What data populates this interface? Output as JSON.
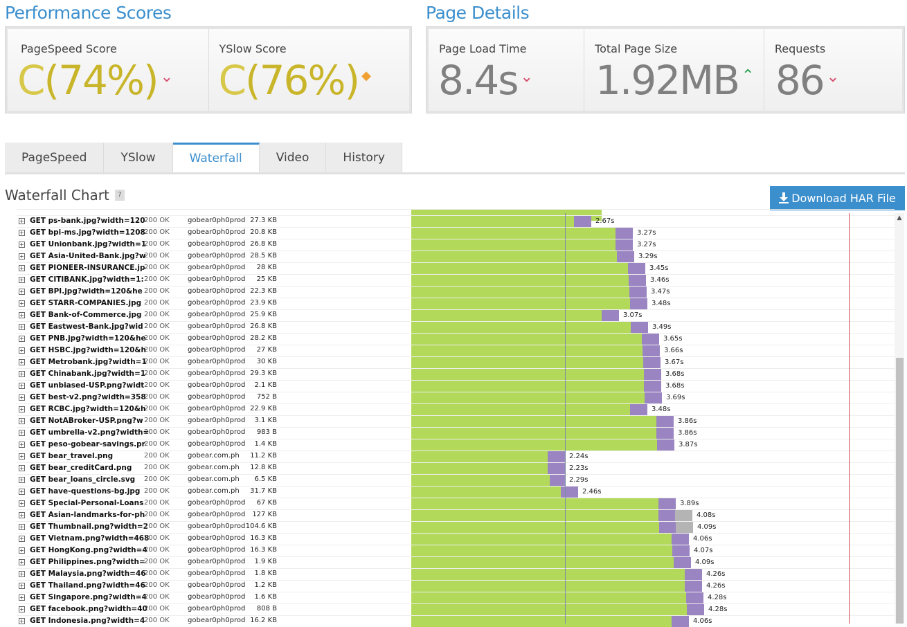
{
  "perf": {
    "title": "Performance Scores",
    "pagespeed": {
      "label": "PageSpeed Score",
      "grade": "C",
      "value": "(74%)",
      "trend": "down"
    },
    "yslow": {
      "label": "YSlow Score",
      "grade": "C",
      "value": "(76%)",
      "trend": "neutral"
    }
  },
  "details": {
    "title": "Page Details",
    "load": {
      "label": "Page Load Time",
      "value": "8.4s",
      "trend": "down"
    },
    "size": {
      "label": "Total Page Size",
      "value": "1.92MB",
      "trend": "up"
    },
    "requests": {
      "label": "Requests",
      "value": "86",
      "trend": "down"
    }
  },
  "tabs": [
    "PageSpeed",
    "YSlow",
    "Waterfall",
    "Video",
    "History"
  ],
  "active_tab": "Waterfall",
  "waterfall": {
    "title": "Waterfall Chart",
    "help": "?",
    "download_label": "Download HAR File",
    "colors": {
      "wait": "#b2d95a",
      "receive": "#9a85c2",
      "blocked": "#b4b4b4",
      "onload": "#6e8aa8",
      "fullload": "#d04040"
    },
    "rows": [
      {
        "url": "GET ps-bank.jpg?width=120",
        "status": "200 OK",
        "domain": "gobear0ph0prod",
        "size": "27.3 KB",
        "start": 0,
        "wait": 2.35,
        "recv": 0.25,
        "blk": 0,
        "time": "2.67s"
      },
      {
        "url": "GET bpi-ms.jpg?width=1208",
        "status": "200 OK",
        "domain": "gobear0ph0prod",
        "size": "20.8 KB",
        "start": 0,
        "wait": 2.95,
        "recv": 0.25,
        "blk": 0,
        "time": "3.27s"
      },
      {
        "url": "GET Unionbank.jpg?width=1",
        "status": "200 OK",
        "domain": "gobear0ph0prod",
        "size": "26.8 KB",
        "start": 0,
        "wait": 2.95,
        "recv": 0.25,
        "blk": 0,
        "time": "3.27s"
      },
      {
        "url": "GET Asia-United-Bank.jpg?w",
        "status": "200 OK",
        "domain": "gobear0ph0prod",
        "size": "28.5 KB",
        "start": 0,
        "wait": 2.97,
        "recv": 0.25,
        "blk": 0,
        "time": "3.29s"
      },
      {
        "url": "GET PIONEER-INSURANCE.jp",
        "status": "200 OK",
        "domain": "gobear0ph0prod",
        "size": "28 KB",
        "start": 0,
        "wait": 3.13,
        "recv": 0.25,
        "blk": 0,
        "time": "3.45s"
      },
      {
        "url": "GET CITIBANK.jpg?width=1:",
        "status": "200 OK",
        "domain": "gobear0ph0prod",
        "size": "25 KB",
        "start": 0,
        "wait": 3.14,
        "recv": 0.25,
        "blk": 0,
        "time": "3.46s"
      },
      {
        "url": "GET BPI.jpg?width=120&he",
        "status": "200 OK",
        "domain": "gobear0ph0prod",
        "size": "22.3 KB",
        "start": 0,
        "wait": 3.15,
        "recv": 0.25,
        "blk": 0,
        "time": "3.47s"
      },
      {
        "url": "GET STARR-COMPANIES.jpg",
        "status": "200 OK",
        "domain": "gobear0ph0prod",
        "size": "23.9 KB",
        "start": 0,
        "wait": 3.16,
        "recv": 0.25,
        "blk": 0,
        "time": "3.48s"
      },
      {
        "url": "GET Bank-of-Commerce.jpg",
        "status": "200 OK",
        "domain": "gobear0ph0prod",
        "size": "25.9 KB",
        "start": 0,
        "wait": 2.75,
        "recv": 0.25,
        "blk": 0,
        "time": "3.07s"
      },
      {
        "url": "GET Eastwest-Bank.jpg?wid",
        "status": "200 OK",
        "domain": "gobear0ph0prod",
        "size": "26.8 KB",
        "start": 0,
        "wait": 3.17,
        "recv": 0.25,
        "blk": 0,
        "time": "3.49s"
      },
      {
        "url": "GET PNB.jpg?width=120&he",
        "status": "200 OK",
        "domain": "gobear0ph0prod",
        "size": "28.2 KB",
        "start": 0,
        "wait": 3.33,
        "recv": 0.25,
        "blk": 0,
        "time": "3.65s"
      },
      {
        "url": "GET HSBC.jpg?width=120&h",
        "status": "200 OK",
        "domain": "gobear0ph0prod",
        "size": "27 KB",
        "start": 0,
        "wait": 3.34,
        "recv": 0.25,
        "blk": 0,
        "time": "3.66s"
      },
      {
        "url": "GET Metrobank.jpg?width=1",
        "status": "200 OK",
        "domain": "gobear0ph0prod",
        "size": "30 KB",
        "start": 0,
        "wait": 3.35,
        "recv": 0.25,
        "blk": 0,
        "time": "3.67s"
      },
      {
        "url": "GET Chinabank.jpg?width=1",
        "status": "200 OK",
        "domain": "gobear0ph0prod",
        "size": "29.3 KB",
        "start": 0,
        "wait": 3.36,
        "recv": 0.25,
        "blk": 0,
        "time": "3.68s"
      },
      {
        "url": "GET unbiased-USP.png?widt",
        "status": "200 OK",
        "domain": "gobear0ph0prod",
        "size": "2.1 KB",
        "start": 0,
        "wait": 3.36,
        "recv": 0.25,
        "blk": 0,
        "time": "3.68s"
      },
      {
        "url": "GET best-v2.png?width=358",
        "status": "200 OK",
        "domain": "gobear0ph0prod",
        "size": "752 B",
        "start": 0,
        "wait": 3.37,
        "recv": 0.25,
        "blk": 0,
        "time": "3.69s"
      },
      {
        "url": "GET RCBC.jpg?width=120&h",
        "status": "200 OK",
        "domain": "gobear0ph0prod",
        "size": "22.9 KB",
        "start": 0,
        "wait": 3.16,
        "recv": 0.25,
        "blk": 0,
        "time": "3.48s"
      },
      {
        "url": "GET NotABroker-USP.png?w",
        "status": "200 OK",
        "domain": "gobear0ph0prod",
        "size": "3.1 KB",
        "start": 0,
        "wait": 3.54,
        "recv": 0.25,
        "blk": 0,
        "time": "3.86s"
      },
      {
        "url": "GET umbrella-v2.png?width=",
        "status": "200 OK",
        "domain": "gobear0ph0prod",
        "size": "983 B",
        "start": 0,
        "wait": 3.54,
        "recv": 0.25,
        "blk": 0,
        "time": "3.86s"
      },
      {
        "url": "GET peso-gobear-savings.pr",
        "status": "200 OK",
        "domain": "gobear0ph0prod",
        "size": "1.4 KB",
        "start": 0,
        "wait": 3.55,
        "recv": 0.25,
        "blk": 0,
        "time": "3.87s"
      },
      {
        "url": "GET bear_travel.png",
        "status": "200 OK",
        "domain": "gobear.com.ph",
        "size": "11.2 KB",
        "start": 0,
        "wait": 1.97,
        "recv": 0.25,
        "blk": 0,
        "time": "2.24s"
      },
      {
        "url": "GET bear_creditCard.png",
        "status": "200 OK",
        "domain": "gobear.com.ph",
        "size": "12.8 KB",
        "start": 0,
        "wait": 1.97,
        "recv": 0.25,
        "blk": 0,
        "time": "2.23s"
      },
      {
        "url": "GET bear_loans_circle.svg",
        "status": "200 OK",
        "domain": "gobear.com.ph",
        "size": "6.5 KB",
        "start": 0,
        "wait": 2.0,
        "recv": 0.22,
        "blk": 0,
        "time": "2.29s"
      },
      {
        "url": "GET have-questions-bg.jpg",
        "status": "200 OK",
        "domain": "gobear.com.ph",
        "size": "31.7 KB",
        "start": 0,
        "wait": 2.16,
        "recv": 0.25,
        "blk": 0,
        "time": "2.46s"
      },
      {
        "url": "GET Special-Personal-Loans",
        "status": "200 OK",
        "domain": "gobear0ph0prod",
        "size": "67 KB",
        "start": 0,
        "wait": 3.57,
        "recv": 0.25,
        "blk": 0,
        "time": "3.89s"
      },
      {
        "url": "GET Asian-landmarks-for-ph",
        "status": "200 OK",
        "domain": "gobear0ph0prod",
        "size": "127 KB",
        "start": 0,
        "wait": 3.57,
        "recv": 0.24,
        "blk": 0.25,
        "time": "4.08s"
      },
      {
        "url": "GET Thumbnail.png?width=2",
        "status": "200 OK",
        "domain": "gobear0ph0prod",
        "size": "104.6 KB",
        "start": 0,
        "wait": 3.58,
        "recv": 0.24,
        "blk": 0.25,
        "time": "4.09s"
      },
      {
        "url": "GET Vietnam.png?width=468",
        "status": "200 OK",
        "domain": "gobear0ph0prod",
        "size": "16.3 KB",
        "start": 0,
        "wait": 3.76,
        "recv": 0.25,
        "blk": 0,
        "time": "4.06s"
      },
      {
        "url": "GET HongKong.png?width=4",
        "status": "200 OK",
        "domain": "gobear0ph0prod",
        "size": "16.3 KB",
        "start": 0,
        "wait": 3.77,
        "recv": 0.25,
        "blk": 0,
        "time": "4.07s"
      },
      {
        "url": "GET Philippines.png?width=",
        "status": "200 OK",
        "domain": "gobear0ph0prod",
        "size": "1.9 KB",
        "start": 0,
        "wait": 3.79,
        "recv": 0.25,
        "blk": 0,
        "time": "4.09s"
      },
      {
        "url": "GET Malaysia.png?width=46",
        "status": "200 OK",
        "domain": "gobear0ph0prod",
        "size": "1.8 KB",
        "start": 0,
        "wait": 3.95,
        "recv": 0.25,
        "blk": 0,
        "time": "4.26s"
      },
      {
        "url": "GET Thailand.png?width=46",
        "status": "200 OK",
        "domain": "gobear0ph0prod",
        "size": "1.2 KB",
        "start": 0,
        "wait": 3.95,
        "recv": 0.25,
        "blk": 0,
        "time": "4.26s"
      },
      {
        "url": "GET Singapore.png?width=4",
        "status": "200 OK",
        "domain": "gobear0ph0prod",
        "size": "1.6 KB",
        "start": 0,
        "wait": 3.97,
        "recv": 0.25,
        "blk": 0,
        "time": "4.28s"
      },
      {
        "url": "GET facebook.png?width=40",
        "status": "200 OK",
        "domain": "gobear0ph0prod",
        "size": "808 B",
        "start": 0,
        "wait": 3.98,
        "recv": 0.25,
        "blk": 0,
        "time": "4.28s"
      },
      {
        "url": "GET Indonesia.png?width=4",
        "status": "200 OK",
        "domain": "gobear0ph0prod",
        "size": "16.2 KB",
        "start": 0,
        "wait": 3.76,
        "recv": 0.25,
        "blk": 0,
        "time": "4.06s"
      }
    ]
  }
}
